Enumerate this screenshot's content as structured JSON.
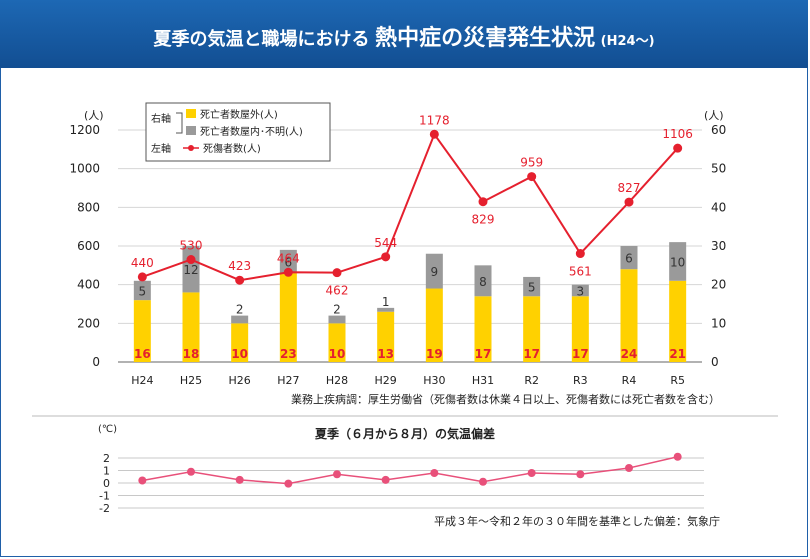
{
  "header": {
    "title_main": "夏季の気温と職場における",
    "title_emph": "熱中症の災害発生状況",
    "title_small": "(H24〜)"
  },
  "colors": {
    "header_bg": "#1659a3",
    "bar_outdoor": "#ffd100",
    "bar_indoor": "#9a9a9a",
    "line_casualties": "#e5202e",
    "line_temperature": "#e8507a"
  },
  "legend": {
    "right_axis_label": "右軸",
    "left_axis_label": "左軸",
    "items": [
      {
        "label": "死亡者数屋外(人)",
        "icon": "yellow-square"
      },
      {
        "label": "死亡者数屋内･不明(人)",
        "icon": "gray-square"
      },
      {
        "label": "死傷者数(人)",
        "icon": "red-dot-line"
      }
    ]
  },
  "chart_data": [
    {
      "type": "bar+line",
      "categories": [
        "H24",
        "H25",
        "H26",
        "H27",
        "H28",
        "H29",
        "H30",
        "H31",
        "R2",
        "R3",
        "R4",
        "R5"
      ],
      "series": [
        {
          "name": "死亡者数屋外(人)",
          "axis": "right",
          "kind": "stacked-bar",
          "values": [
            16,
            18,
            10,
            23,
            10,
            13,
            19,
            17,
            17,
            17,
            24,
            21
          ]
        },
        {
          "name": "死亡者数屋内･不明(人)",
          "axis": "right",
          "kind": "stacked-bar",
          "values": [
            5,
            12,
            2,
            6,
            2,
            1,
            9,
            8,
            5,
            3,
            6,
            10
          ]
        },
        {
          "name": "死傷者数(人)",
          "axis": "left",
          "kind": "line",
          "values": [
            440,
            530,
            423,
            464,
            462,
            544,
            1178,
            829,
            959,
            561,
            827,
            1106
          ]
        }
      ],
      "left_axis": {
        "unit": "(人)",
        "ylim": [
          0,
          1200
        ],
        "ticks": [
          "0",
          "200",
          "400",
          "600",
          "800",
          "1000",
          "1200"
        ]
      },
      "right_axis": {
        "unit": "(人)",
        "ylim": [
          0,
          60
        ],
        "ticks": [
          "0",
          "10",
          "20",
          "30",
          "40",
          "50",
          "60"
        ]
      },
      "grid": true,
      "legend_position": "top-left",
      "source_note": "業務上疾病調：厚生労働省（死傷者数は休業４日以上、死傷者数には死亡者数を含む）"
    },
    {
      "type": "line",
      "title": "夏季（６月から８月）の気温偏差",
      "categories": [
        "H24",
        "H25",
        "H26",
        "H27",
        "H28",
        "H29",
        "H30",
        "H31",
        "R2",
        "R3",
        "R4",
        "R5"
      ],
      "series": [
        {
          "values": [
            0.2,
            0.9,
            0.25,
            -0.05,
            0.7,
            0.25,
            0.8,
            0.1,
            0.8,
            0.7,
            1.2,
            2.1
          ]
        }
      ],
      "y_unit": "(℃)",
      "ylim": [
        -2,
        2
      ],
      "ticks": [
        "-2",
        "-1",
        "0",
        "1",
        "2"
      ],
      "grid": true,
      "source_note": "平成３年〜令和２年の３０年間を基準とした偏差：気象庁"
    }
  ]
}
